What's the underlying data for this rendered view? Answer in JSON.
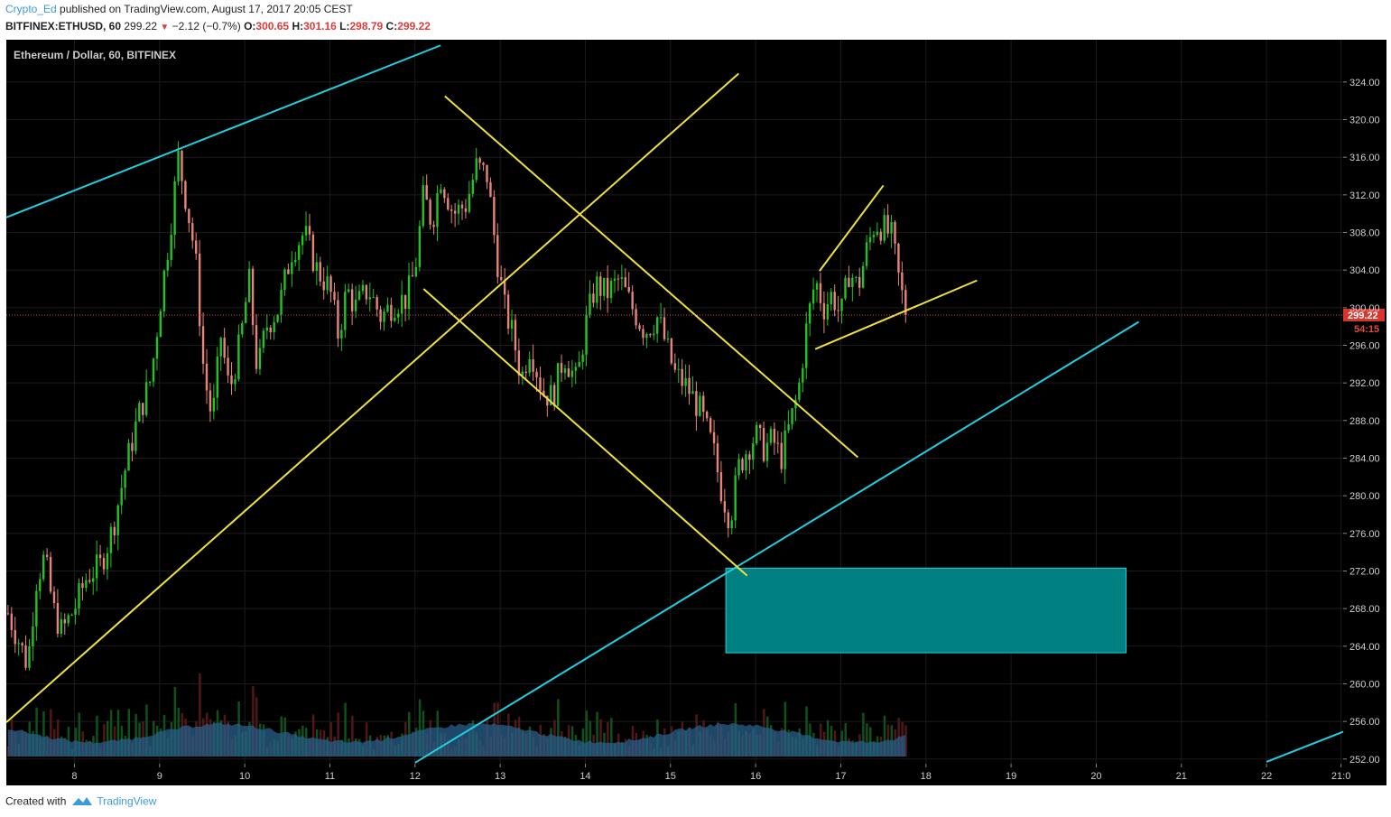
{
  "header": {
    "author": "Crypto_Ed",
    "published": "published on TradingView.com, August 17, 2017 20:05 CEST",
    "symbol": "BITFINEX:ETHUSD, 60",
    "last": "299.22",
    "change": "−2.12 (−0.7%)",
    "o_label": "O:",
    "o_value": "300.65",
    "h_label": "H:",
    "h_value": "301.16",
    "l_label": "L:",
    "l_value": "298.79",
    "c_label": "C:",
    "c_value": "299.22"
  },
  "footer": {
    "created_with": "Created with",
    "brand": "TradingView"
  },
  "chart_data": {
    "type": "candlestick",
    "title": "Ethereum / Dollar, 60, BITFINEX",
    "x_tick_labels": [
      "8",
      "9",
      "10",
      "11",
      "12",
      "13",
      "14",
      "15",
      "16",
      "17",
      "18",
      "19",
      "20",
      "21",
      "22",
      "21:0"
    ],
    "y_tick_labels": [
      "252.00",
      "256.00",
      "260.00",
      "264.00",
      "268.00",
      "272.00",
      "276.00",
      "280.00",
      "284.00",
      "288.00",
      "292.00",
      "296.00",
      "300.00",
      "304.00",
      "308.00",
      "312.00",
      "316.00",
      "320.00",
      "324.00"
    ],
    "ylim": [
      251.5,
      328.5
    ],
    "x_days_range": [
      7.2,
      22.9
    ],
    "last_price": 299.22,
    "last_price_label": "299.22",
    "countdown_label": "54:15",
    "grid": true,
    "colors": {
      "background": "#000000",
      "up": "#22c422",
      "down": "#e8857a",
      "trendline_cyan": "#1fd0e0",
      "trendline_yellow": "#f0e23a",
      "zone_fill": "#008080",
      "price_line": "#d94a3a",
      "volume": "#2a5f8a"
    },
    "price_path": [
      [
        7.22,
        267.5
      ],
      [
        7.35,
        264.5
      ],
      [
        7.45,
        262.0
      ],
      [
        7.55,
        271.0
      ],
      [
        7.65,
        273.5
      ],
      [
        7.75,
        268.0
      ],
      [
        7.85,
        265.5
      ],
      [
        8.0,
        268.0
      ],
      [
        8.15,
        271.5
      ],
      [
        8.3,
        272.5
      ],
      [
        8.45,
        276.5
      ],
      [
        8.6,
        283.0
      ],
      [
        8.75,
        288.5
      ],
      [
        8.9,
        292.5
      ],
      [
        9.0,
        300.0
      ],
      [
        9.12,
        308.0
      ],
      [
        9.22,
        316.0
      ],
      [
        9.32,
        311.0
      ],
      [
        9.42,
        305.5
      ],
      [
        9.52,
        293.0
      ],
      [
        9.62,
        288.0
      ],
      [
        9.72,
        297.0
      ],
      [
        9.82,
        291.0
      ],
      [
        9.95,
        296.5
      ],
      [
        10.05,
        303.0
      ],
      [
        10.15,
        293.0
      ],
      [
        10.25,
        298.0
      ],
      [
        10.4,
        300.0
      ],
      [
        10.55,
        306.0
      ],
      [
        10.7,
        308.0
      ],
      [
        10.85,
        304.0
      ],
      [
        11.0,
        302.0
      ],
      [
        11.1,
        297.0
      ],
      [
        11.2,
        302.0
      ],
      [
        11.3,
        300.0
      ],
      [
        11.45,
        302.0
      ],
      [
        11.6,
        299.0
      ],
      [
        11.75,
        300.5
      ],
      [
        11.9,
        301.0
      ],
      [
        12.0,
        304.0
      ],
      [
        12.1,
        312.0
      ],
      [
        12.2,
        309.0
      ],
      [
        12.3,
        314.0
      ],
      [
        12.45,
        310.0
      ],
      [
        12.6,
        311.0
      ],
      [
        12.72,
        315.0
      ],
      [
        12.85,
        314.0
      ],
      [
        12.95,
        306.0
      ],
      [
        13.05,
        300.0
      ],
      [
        13.15,
        297.0
      ],
      [
        13.25,
        292.5
      ],
      [
        13.35,
        296.0
      ],
      [
        13.5,
        291.0
      ],
      [
        13.62,
        290.5
      ],
      [
        13.75,
        295.0
      ],
      [
        13.9,
        292.0
      ],
      [
        14.0,
        298.0
      ],
      [
        14.12,
        302.5
      ],
      [
        14.25,
        301.5
      ],
      [
        14.4,
        303.0
      ],
      [
        14.55,
        300.0
      ],
      [
        14.7,
        297.5
      ],
      [
        14.85,
        299.0
      ],
      [
        14.95,
        296.0
      ],
      [
        15.05,
        293.0
      ],
      [
        15.2,
        291.5
      ],
      [
        15.35,
        289.0
      ],
      [
        15.5,
        285.0
      ],
      [
        15.6,
        280.5
      ],
      [
        15.7,
        277.5
      ],
      [
        15.8,
        283.0
      ],
      [
        15.9,
        285.0
      ],
      [
        16.0,
        286.5
      ],
      [
        16.1,
        285.0
      ],
      [
        16.2,
        286.0
      ],
      [
        16.3,
        284.0
      ],
      [
        16.4,
        287.5
      ],
      [
        16.5,
        291.0
      ],
      [
        16.6,
        298.0
      ],
      [
        16.7,
        303.0
      ],
      [
        16.8,
        300.0
      ],
      [
        16.9,
        301.5
      ],
      [
        17.0,
        299.0
      ],
      [
        17.1,
        304.0
      ],
      [
        17.2,
        302.0
      ],
      [
        17.3,
        306.0
      ],
      [
        17.4,
        309.0
      ],
      [
        17.5,
        308.5
      ],
      [
        17.6,
        307.5
      ],
      [
        17.7,
        302.0
      ],
      [
        17.78,
        299.22
      ]
    ],
    "trendlines": [
      {
        "color": "cyan",
        "from": [
          7.2,
          309.6
        ],
        "to": [
          12.3,
          327.9
        ]
      },
      {
        "color": "cyan",
        "from": [
          12.0,
          251.6
        ],
        "to": [
          20.5,
          298.5
        ]
      },
      {
        "color": "cyan",
        "from": [
          22.0,
          251.7
        ],
        "to": [
          22.9,
          254.9
        ]
      },
      {
        "color": "yellow",
        "from": [
          7.2,
          255.9
        ],
        "to": [
          15.8,
          324.9
        ]
      },
      {
        "color": "yellow",
        "from": [
          12.35,
          322.5
        ],
        "to": [
          17.2,
          284.1
        ]
      },
      {
        "color": "yellow",
        "from": [
          12.1,
          302.0
        ],
        "to": [
          15.9,
          271.5
        ]
      },
      {
        "color": "yellow",
        "from": [
          16.75,
          303.9
        ],
        "to": [
          17.5,
          313.0
        ]
      },
      {
        "color": "yellow",
        "from": [
          16.7,
          295.6
        ],
        "to": [
          18.6,
          302.9
        ]
      }
    ],
    "zones": [
      {
        "x_from": 15.65,
        "x_to": 20.35,
        "y_from": 263.3,
        "y_to": 272.3
      }
    ]
  }
}
